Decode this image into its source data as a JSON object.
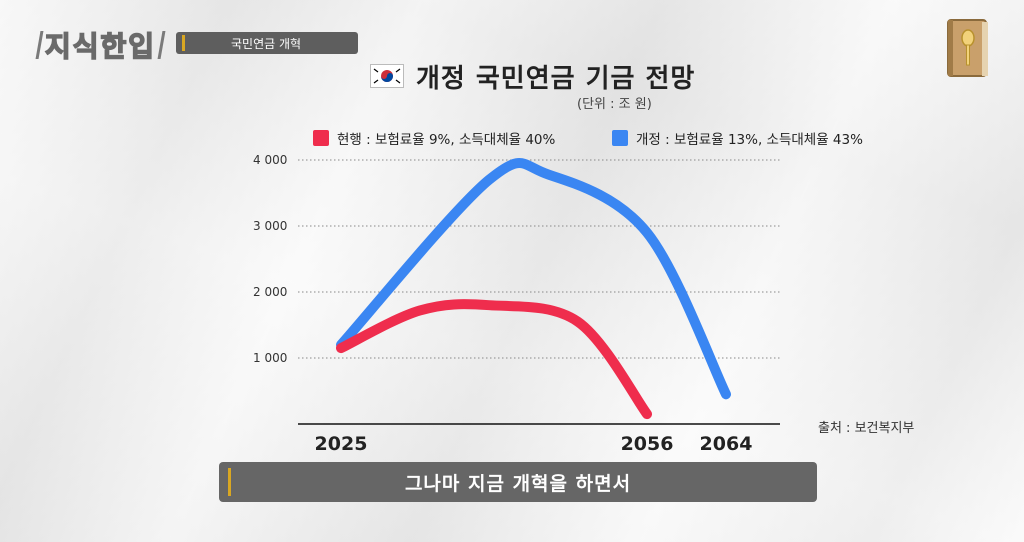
{
  "channel": {
    "logo_text": "지식한입"
  },
  "topic": {
    "label": "국민연금 개혁"
  },
  "icons": {
    "channel_icon": "book-spoon-icon",
    "flag": "korea-flag-icon"
  },
  "chart_data": {
    "type": "line",
    "title": "개정 국민연금 기금 전망",
    "unit": "(단위 : 조 원)",
    "source": "출처 : 보건복지부",
    "yticks": [
      1000,
      2000,
      3000,
      4000
    ],
    "ytick_labels": [
      "1 000",
      "2 000",
      "3 000",
      "4 000"
    ],
    "ylim": [
      0,
      4000
    ],
    "xlabels": [
      "2025",
      "2056",
      "2064"
    ],
    "xlim": [
      2025,
      2066
    ],
    "grid": true,
    "legend_position": "top",
    "series": [
      {
        "name": "현행 : 보험료율 9%, 소득대체율 40%",
        "color": "#ef2d4d",
        "points": [
          [
            2025,
            1150
          ],
          [
            2033,
            1720
          ],
          [
            2040,
            1800
          ],
          [
            2049,
            1550
          ],
          [
            2056,
            150
          ]
        ]
      },
      {
        "name": "개정 : 보험료율 13%, 소득대체율 43%",
        "color": "#3a86f2",
        "points": [
          [
            2025,
            1200
          ],
          [
            2040,
            3700
          ],
          [
            2046,
            3780
          ],
          [
            2056,
            2900
          ],
          [
            2064,
            450
          ]
        ]
      }
    ]
  },
  "caption": {
    "text": "그나마 지금 개혁을 하면서"
  }
}
